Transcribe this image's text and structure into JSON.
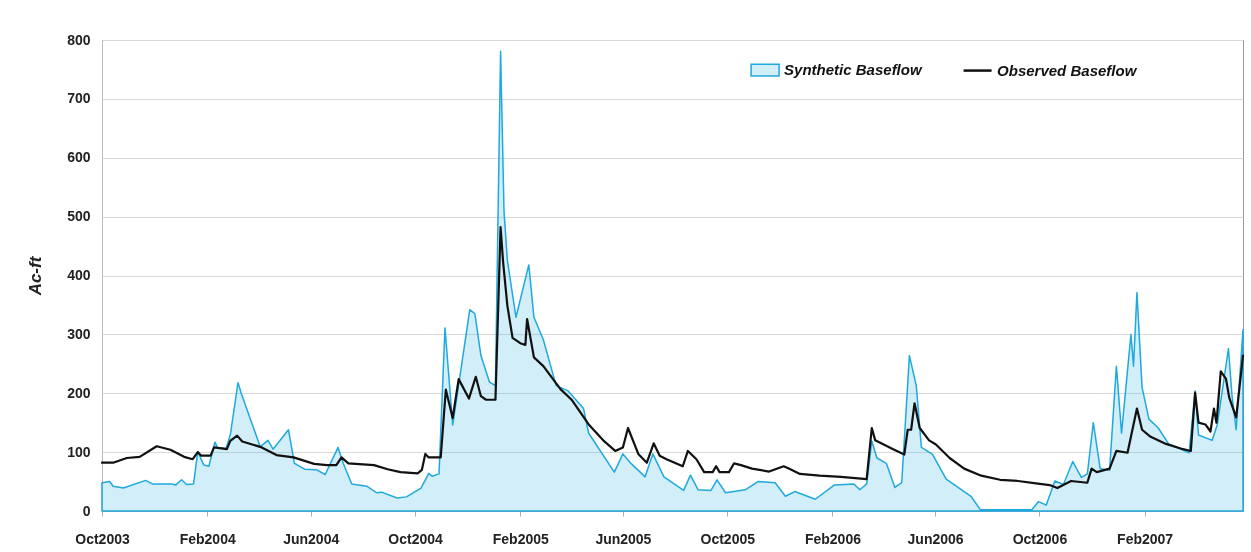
{
  "chart_data": {
    "type": "line",
    "ylabel": "Ac-ft",
    "xlim": [
      "2003-10-01",
      "2007-05-27"
    ],
    "xticks": [
      {
        "value": "2003-10-01",
        "label": "Oct2003"
      },
      {
        "value": "2004-02-01",
        "label": "Feb2004"
      },
      {
        "value": "2004-06-01",
        "label": "Jun2004"
      },
      {
        "value": "2004-10-01",
        "label": "Oct2004"
      },
      {
        "value": "2005-02-01",
        "label": "Feb2005"
      },
      {
        "value": "2005-06-01",
        "label": "Jun2005"
      },
      {
        "value": "2005-10-01",
        "label": "Oct2005"
      },
      {
        "value": "2006-02-01",
        "label": "Feb2006"
      },
      {
        "value": "2006-06-01",
        "label": "Jun2006"
      },
      {
        "value": "2006-10-01",
        "label": "Oct2006"
      },
      {
        "value": "2007-02-01",
        "label": "Feb2007"
      }
    ],
    "ylim": [
      0,
      800
    ],
    "yticks": [
      0,
      100,
      200,
      300,
      400,
      500,
      600,
      700,
      800
    ],
    "grid": "y",
    "legend": "top right",
    "series": [
      {
        "name": "Synthetic Baseflow",
        "type": "area",
        "color": "#1fa9de",
        "x": [
          "2003-10-01",
          "2003-10-10",
          "2003-10-14",
          "2003-10-26",
          "2003-11-21",
          "2003-11-29",
          "2003-12-22",
          "2003-12-26",
          "2004-01-02",
          "2004-01-08",
          "2004-01-16",
          "2004-01-21",
          "2004-01-28",
          "2004-02-03",
          "2004-02-10",
          "2004-02-13",
          "2004-02-23",
          "2004-02-28",
          "2004-03-08",
          "2004-03-12",
          "2004-04-03",
          "2004-04-12",
          "2004-04-18",
          "2004-05-06",
          "2004-05-13",
          "2004-05-25",
          "2004-06-08",
          "2004-06-18",
          "2004-07-03",
          "2004-07-09",
          "2004-07-19",
          "2004-08-06",
          "2004-08-17",
          "2004-08-23",
          "2004-09-10",
          "2004-09-21",
          "2004-10-08",
          "2004-10-17",
          "2004-10-21",
          "2004-10-29",
          "2004-11-05",
          "2004-11-14",
          "2004-12-04",
          "2004-12-10",
          "2004-12-17",
          "2004-12-27",
          "2005-01-03",
          "2005-01-09",
          "2005-01-13",
          "2005-01-17",
          "2005-01-27",
          "2005-02-11",
          "2005-02-17",
          "2005-02-28",
          "2005-03-15",
          "2005-03-29",
          "2005-04-16",
          "2005-04-22",
          "2005-05-22",
          "2005-06-01",
          "2005-06-11",
          "2005-06-27",
          "2005-07-06",
          "2005-07-19",
          "2005-08-11",
          "2005-08-19",
          "2005-08-28",
          "2005-09-12",
          "2005-09-19",
          "2005-09-29",
          "2005-10-22",
          "2005-11-06",
          "2005-11-26",
          "2005-12-08",
          "2005-12-19",
          "2006-01-12",
          "2006-02-03",
          "2006-02-26",
          "2006-03-05",
          "2006-03-13",
          "2006-03-19",
          "2006-03-25",
          "2006-04-05",
          "2006-04-15",
          "2006-04-23",
          "2006-05-02",
          "2006-05-10",
          "2006-05-16",
          "2006-05-29",
          "2006-06-14",
          "2006-07-05",
          "2006-07-13",
          "2006-07-24",
          "2006-09-22",
          "2006-09-30",
          "2006-10-09",
          "2006-10-19",
          "2006-10-29",
          "2006-11-09",
          "2006-11-19",
          "2006-11-26",
          "2006-12-03",
          "2006-12-11",
          "2006-12-22",
          "2006-12-30",
          "2007-01-05",
          "2007-01-16",
          "2007-01-19",
          "2007-01-23",
          "2007-01-29",
          "2007-02-06",
          "2007-02-17",
          "2007-03-01",
          "2007-03-25",
          "2007-04-01",
          "2007-04-05",
          "2007-04-21",
          "2007-04-27",
          "2007-05-10",
          "2007-05-14",
          "2007-05-19",
          "2007-05-27"
        ],
        "values": [
          48,
          50,
          42,
          39,
          52,
          46,
          46,
          44,
          53,
          45,
          46,
          101,
          78,
          76,
          117,
          108,
          106,
          129,
          218,
          199,
          109,
          120,
          105,
          138,
          81,
          71,
          70,
          62,
          108,
          81,
          46,
          42,
          31,
          32,
          22,
          24,
          39,
          64,
          59,
          63,
          311,
          146,
          342,
          335,
          264,
          219,
          213,
          781,
          509,
          425,
          329,
          418,
          329,
          291,
          213,
          204,
          174,
          132,
          66,
          97,
          80,
          58,
          97,
          58,
          35,
          61,
          36,
          35,
          53,
          31,
          36,
          50,
          48,
          25,
          33,
          20,
          44,
          46,
          36,
          46,
          119,
          90,
          81,
          40,
          48,
          264,
          213,
          108,
          96,
          54,
          33,
          25,
          2,
          2,
          16,
          10,
          51,
          45,
          84,
          57,
          63,
          150,
          72,
          69,
          246,
          132,
          300,
          246,
          371,
          210,
          156,
          141,
          114,
          99,
          204,
          129,
          120,
          147,
          276,
          198,
          138,
          308
        ]
      },
      {
        "name": "Observed Baseflow",
        "color": "#111111",
        "x": [
          "2003-10-01",
          "2003-10-14",
          "2003-10-30",
          "2003-11-14",
          "2003-12-04",
          "2003-12-20",
          "2004-01-05",
          "2004-01-15",
          "2004-01-21",
          "2004-01-25",
          "2004-02-05",
          "2004-02-09",
          "2004-02-24",
          "2004-02-28",
          "2004-03-07",
          "2004-03-13",
          "2004-04-03",
          "2004-04-22",
          "2004-05-12",
          "2004-06-05",
          "2004-06-20",
          "2004-07-01",
          "2004-07-07",
          "2004-07-15",
          "2004-08-14",
          "2004-08-30",
          "2004-09-14",
          "2004-10-04",
          "2004-10-09",
          "2004-10-13",
          "2004-10-17",
          "2004-10-31",
          "2004-11-06",
          "2004-11-14",
          "2004-11-21",
          "2004-12-03",
          "2004-12-11",
          "2004-12-17",
          "2004-12-23",
          "2005-01-03",
          "2005-01-09",
          "2005-01-12",
          "2005-01-17",
          "2005-01-23",
          "2005-02-01",
          "2005-02-07",
          "2005-02-09",
          "2005-02-17",
          "2005-02-28",
          "2005-03-20",
          "2005-04-02",
          "2005-04-22",
          "2005-05-09",
          "2005-05-23",
          "2005-06-01",
          "2005-06-07",
          "2005-06-19",
          "2005-06-29",
          "2005-07-07",
          "2005-07-14",
          "2005-07-22",
          "2005-08-10",
          "2005-08-16",
          "2005-08-26",
          "2005-09-04",
          "2005-09-14",
          "2005-09-18",
          "2005-09-22",
          "2005-10-03",
          "2005-10-09",
          "2005-10-17",
          "2005-10-30",
          "2005-11-19",
          "2005-12-06",
          "2005-12-12",
          "2005-12-25",
          "2006-01-17",
          "2006-02-11",
          "2006-03-13",
          "2006-03-19",
          "2006-03-23",
          "2006-04-13",
          "2006-04-26",
          "2006-04-30",
          "2006-05-04",
          "2006-05-08",
          "2006-05-14",
          "2006-05-25",
          "2006-06-02",
          "2006-06-18",
          "2006-07-05",
          "2006-07-25",
          "2006-08-16",
          "2006-09-06",
          "2006-09-27",
          "2006-10-13",
          "2006-10-22",
          "2006-11-07",
          "2006-11-26",
          "2006-12-01",
          "2006-12-07",
          "2006-12-22",
          "2006-12-30",
          "2007-01-12",
          "2007-01-23",
          "2007-01-29",
          "2007-02-08",
          "2007-02-26",
          "2007-03-18",
          "2007-03-27",
          "2007-04-01",
          "2007-04-05",
          "2007-04-13",
          "2007-04-19",
          "2007-04-23",
          "2007-04-26",
          "2007-05-01",
          "2007-05-07",
          "2007-05-11",
          "2007-05-19",
          "2007-05-27"
        ],
        "values": [
          82,
          82,
          90,
          92,
          110,
          104,
          92,
          88,
          100,
          94,
          94,
          108,
          105,
          119,
          128,
          118,
          109,
          95,
          91,
          80,
          78,
          78,
          91,
          81,
          78,
          71,
          66,
          64,
          70,
          97,
          91,
          91,
          206,
          158,
          224,
          191,
          228,
          195,
          189,
          189,
          482,
          422,
          348,
          294,
          285,
          282,
          326,
          261,
          246,
          207,
          189,
          147,
          120,
          102,
          108,
          141,
          97,
          82,
          115,
          94,
          88,
          76,
          102,
          88,
          66,
          66,
          76,
          66,
          66,
          81,
          78,
          72,
          67,
          76,
          72,
          63,
          60,
          58,
          54,
          141,
          120,
          105,
          96,
          138,
          138,
          183,
          141,
          120,
          113,
          90,
          72,
          60,
          53,
          51,
          47,
          44,
          39,
          51,
          48,
          72,
          66,
          72,
          102,
          99,
          174,
          138,
          126,
          114,
          105,
          102,
          201,
          150,
          147,
          135,
          174,
          150,
          237,
          225,
          192,
          159,
          264
        ]
      }
    ]
  }
}
